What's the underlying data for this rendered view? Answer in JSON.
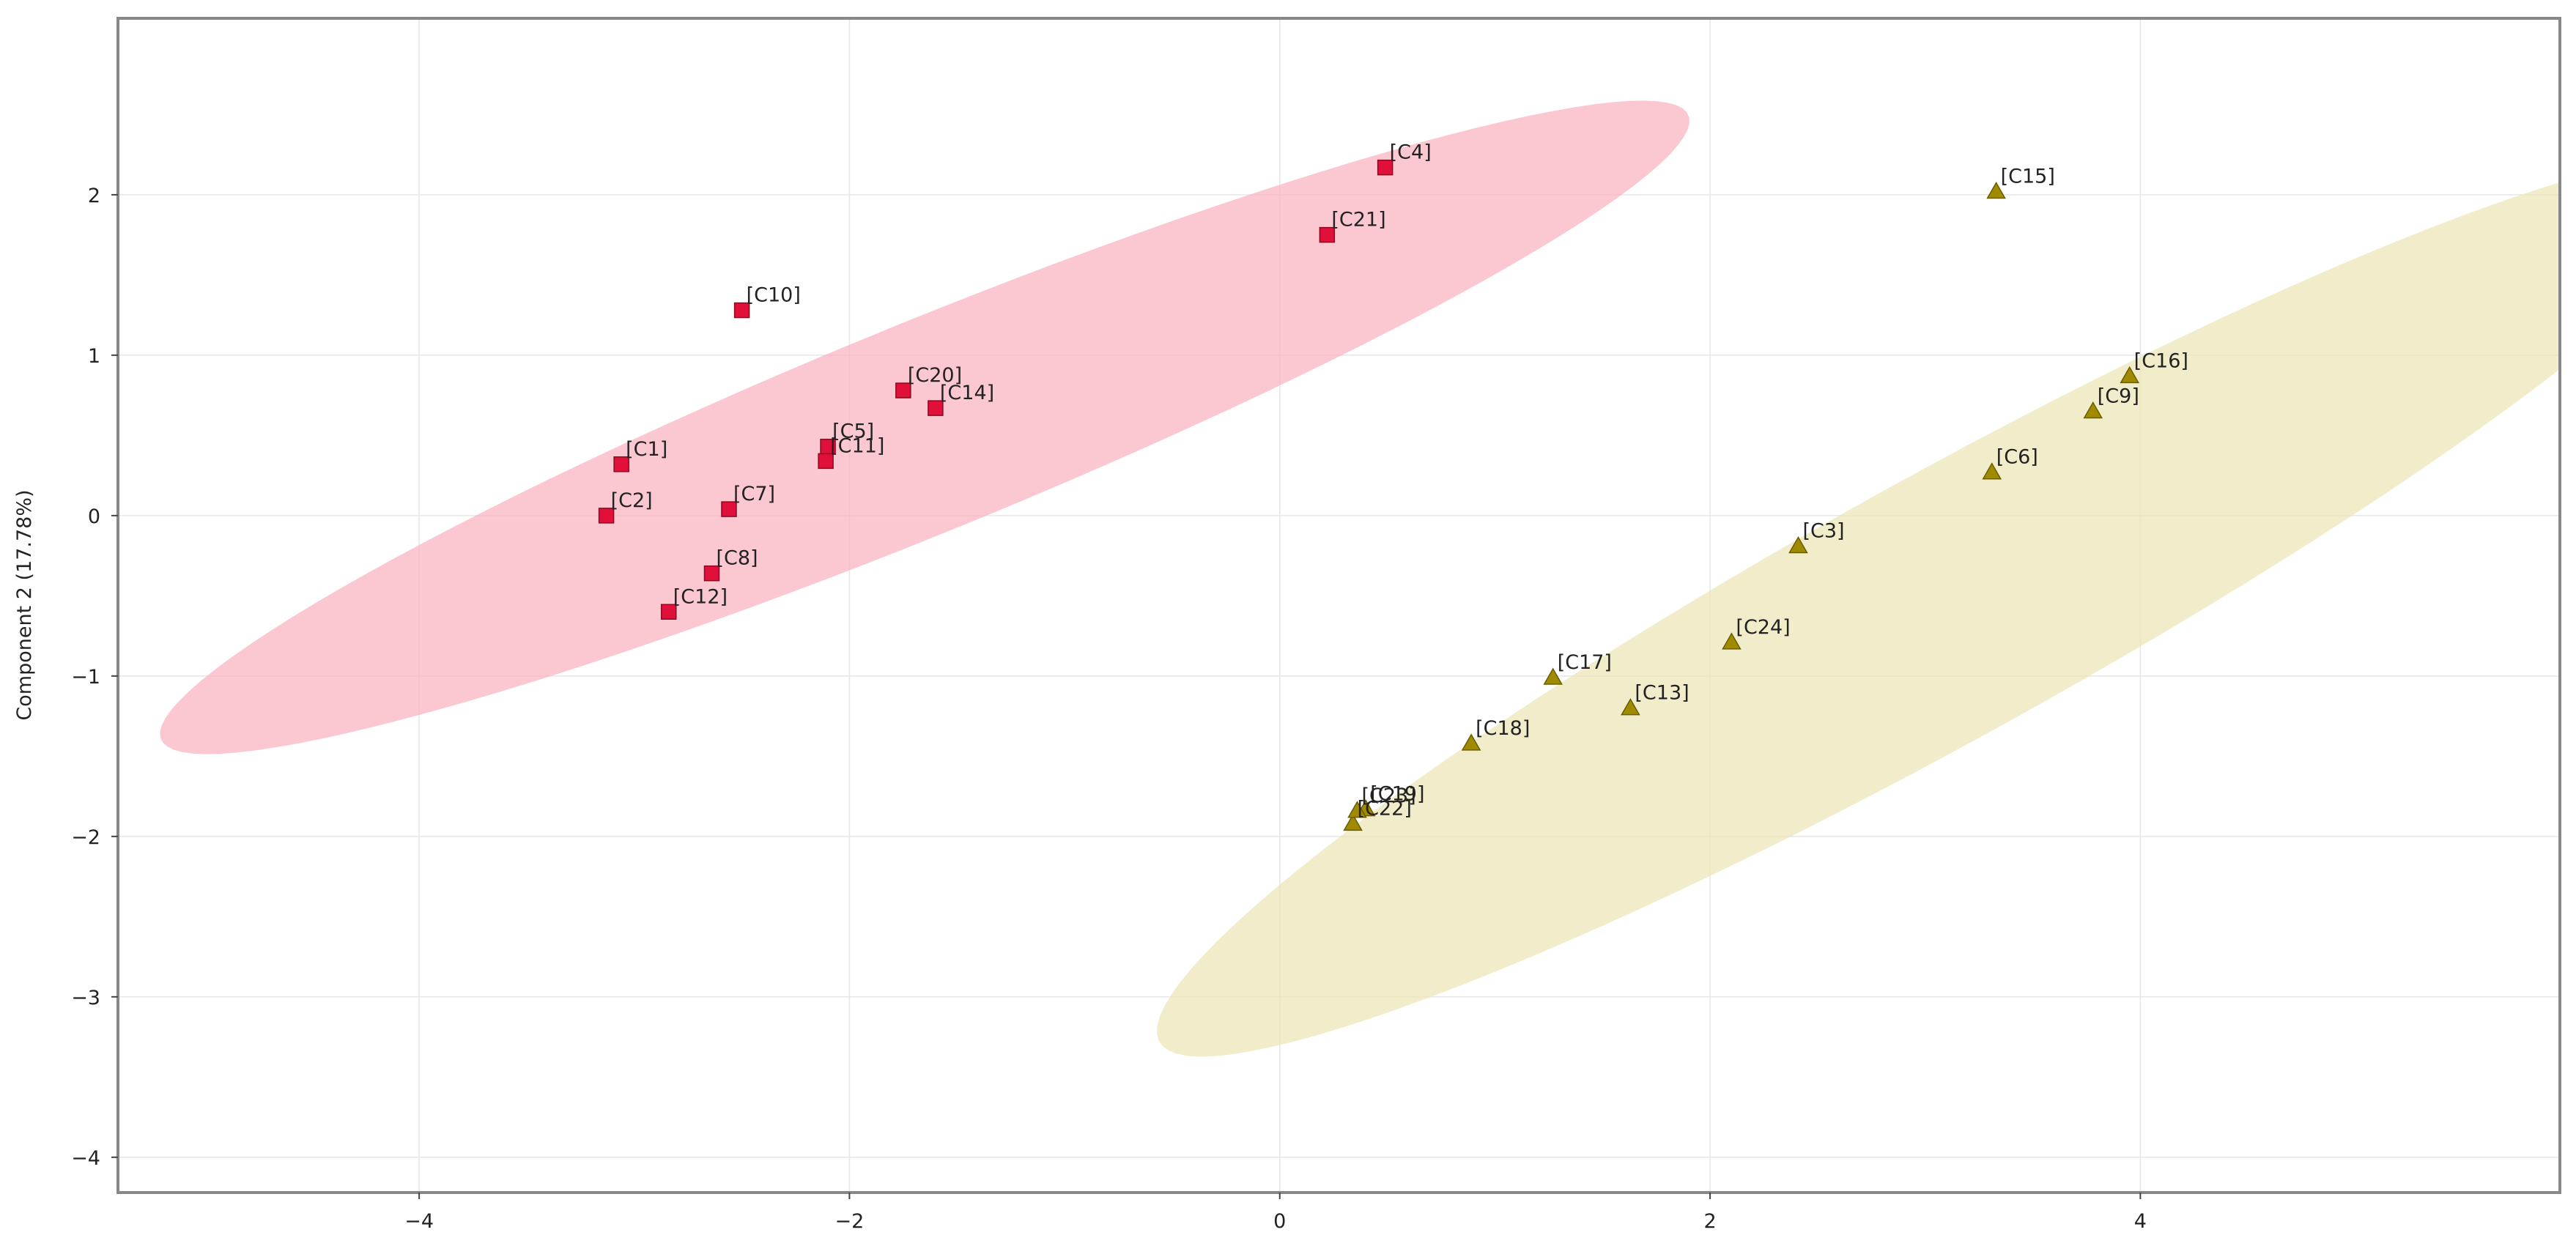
{
  "chart_data": {
    "type": "scatter",
    "title": "",
    "xlabel": "",
    "ylabel": "Component 2 (17.78%)",
    "xlim": [
      -5.4,
      5.95
    ],
    "ylim": [
      -4.22,
      3.1
    ],
    "xticks": [
      -4,
      -2,
      0,
      2,
      4
    ],
    "yticks": [
      -4,
      -3,
      -2,
      -1,
      0,
      1,
      2
    ],
    "grid": true,
    "legend": "none",
    "colors": {
      "group1_marker": "#e0103a",
      "group1_marker_edge": "#8b0a22",
      "group1_ellipse": "#f9b3c1",
      "group2_marker": "#a08a00",
      "group2_marker_edge": "#6b5c00",
      "group2_ellipse": "#ebe4b4",
      "frame": "#888888",
      "grid": "#e6e6e6"
    },
    "series": [
      {
        "name": "group1",
        "marker": "square",
        "ellipse": {
          "cx": -1.65,
          "cy": 0.55,
          "rx": 4.05,
          "ry": 0.62,
          "angle_deg": 29
        },
        "points": [
          {
            "label": "[C1]",
            "x": -3.06,
            "y": 0.32
          },
          {
            "label": "[C2]",
            "x": -3.13,
            "y": 0.0
          },
          {
            "label": "[C4]",
            "x": 0.49,
            "y": 2.17
          },
          {
            "label": "[C5]",
            "x": -2.1,
            "y": 0.43
          },
          {
            "label": "[C7]",
            "x": -2.56,
            "y": 0.04
          },
          {
            "label": "[C8]",
            "x": -2.64,
            "y": -0.36
          },
          {
            "label": "[C10]",
            "x": -2.5,
            "y": 1.28
          },
          {
            "label": "[C11]",
            "x": -2.11,
            "y": 0.34
          },
          {
            "label": "[C12]",
            "x": -2.84,
            "y": -0.6
          },
          {
            "label": "[C14]",
            "x": -1.6,
            "y": 0.67
          },
          {
            "label": "[C20]",
            "x": -1.75,
            "y": 0.78
          },
          {
            "label": "[C21]",
            "x": 0.22,
            "y": 1.75
          }
        ]
      },
      {
        "name": "group2",
        "marker": "triangle",
        "ellipse": {
          "cx": 3.09,
          "cy": -0.57,
          "rx": 4.55,
          "ry": 0.75,
          "angle_deg": 37
        },
        "points": [
          {
            "label": "[C3]",
            "x": 2.41,
            "y": -0.19
          },
          {
            "label": "[C6]",
            "x": 3.31,
            "y": 0.27
          },
          {
            "label": "[C9]",
            "x": 3.78,
            "y": 0.65
          },
          {
            "label": "[C13]",
            "x": 1.63,
            "y": -1.2
          },
          {
            "label": "[C15]",
            "x": 3.33,
            "y": 2.02
          },
          {
            "label": "[C16]",
            "x": 3.95,
            "y": 0.87
          },
          {
            "label": "[C17]",
            "x": 1.27,
            "y": -1.01
          },
          {
            "label": "[C18]",
            "x": 0.89,
            "y": -1.42
          },
          {
            "label": "[C19]",
            "x": 0.4,
            "y": -1.83
          },
          {
            "label": "[C22]",
            "x": 0.34,
            "y": -1.92
          },
          {
            "label": "[C23]",
            "x": 0.36,
            "y": -1.84
          },
          {
            "label": "[C24]",
            "x": 2.1,
            "y": -0.79
          }
        ]
      }
    ]
  }
}
